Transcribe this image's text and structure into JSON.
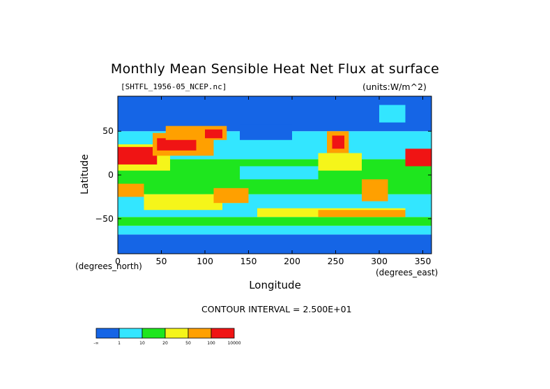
{
  "chart_data": {
    "type": "heatmap",
    "title": "Monthly Mean Sensible Heat Net Flux at surface",
    "subtitle_left": "[SHTFL_1956-05_NCEP.nc]",
    "units": "(units:W/m^2)",
    "xlabel": "Longitude",
    "ylabel": "Latitude",
    "x_unit_label": "(degrees_north)",
    "x_unit_label_east": "(degrees_east)",
    "xlim": [
      0,
      360
    ],
    "ylim": [
      -90,
      90
    ],
    "x_ticks": [
      0,
      50,
      100,
      150,
      200,
      250,
      300,
      350
    ],
    "y_ticks": [
      -50,
      0,
      50
    ],
    "contour_interval": "CONTOUR INTERVAL = 2.500E+01",
    "colorbar": {
      "colors": [
        "#1565e6",
        "#33e6ff",
        "#1ee61e",
        "#f5f51a",
        "#ffa000",
        "#f01414"
      ],
      "labels": [
        "-∞",
        "1",
        "10",
        "20",
        "50",
        "100",
        "10000"
      ]
    },
    "field_regions": [
      {
        "lon": [
          0,
          360
        ],
        "lat": [
          -90,
          -68
        ],
        "class": 0
      },
      {
        "lon": [
          0,
          360
        ],
        "lat": [
          -68,
          -58
        ],
        "class": 1
      },
      {
        "lon": [
          0,
          360
        ],
        "lat": [
          -58,
          -48
        ],
        "class": 2
      },
      {
        "lon": [
          0,
          360
        ],
        "lat": [
          -48,
          -22
        ],
        "class": 1
      },
      {
        "lon": [
          0,
          360
        ],
        "lat": [
          -22,
          18
        ],
        "class": 2
      },
      {
        "lon": [
          0,
          360
        ],
        "lat": [
          18,
          50
        ],
        "class": 1
      },
      {
        "lon": [
          0,
          360
        ],
        "lat": [
          50,
          90
        ],
        "class": 0
      },
      {
        "lon": [
          140,
          230
        ],
        "lat": [
          -5,
          10
        ],
        "class": 1
      },
      {
        "lon": [
          140,
          200
        ],
        "lat": [
          40,
          58
        ],
        "class": 0
      },
      {
        "lon": [
          30,
          120
        ],
        "lat": [
          -40,
          -22
        ],
        "class": 3
      },
      {
        "lon": [
          100,
          140
        ],
        "lat": [
          -32,
          -22
        ],
        "class": 3
      },
      {
        "lon": [
          160,
          330
        ],
        "lat": [
          -48,
          -38
        ],
        "class": 3
      },
      {
        "lon": [
          230,
          330
        ],
        "lat": [
          -48,
          -40
        ],
        "class": 4
      },
      {
        "lon": [
          0,
          60
        ],
        "lat": [
          5,
          35
        ],
        "class": 3
      },
      {
        "lon": [
          0,
          45
        ],
        "lat": [
          12,
          32
        ],
        "class": 5
      },
      {
        "lon": [
          40,
          110
        ],
        "lat": [
          22,
          48
        ],
        "class": 4
      },
      {
        "lon": [
          45,
          90
        ],
        "lat": [
          28,
          42
        ],
        "class": 5
      },
      {
        "lon": [
          55,
          125
        ],
        "lat": [
          40,
          56
        ],
        "class": 4
      },
      {
        "lon": [
          100,
          120
        ],
        "lat": [
          42,
          52
        ],
        "class": 5
      },
      {
        "lon": [
          110,
          150
        ],
        "lat": [
          -32,
          -15
        ],
        "class": 4
      },
      {
        "lon": [
          0,
          30
        ],
        "lat": [
          -25,
          -10
        ],
        "class": 4
      },
      {
        "lon": [
          240,
          265
        ],
        "lat": [
          25,
          50
        ],
        "class": 4
      },
      {
        "lon": [
          246,
          260
        ],
        "lat": [
          30,
          45
        ],
        "class": 5
      },
      {
        "lon": [
          280,
          310
        ],
        "lat": [
          -30,
          -5
        ],
        "class": 4
      },
      {
        "lon": [
          330,
          360
        ],
        "lat": [
          10,
          30
        ],
        "class": 5
      },
      {
        "lon": [
          300,
          330
        ],
        "lat": [
          60,
          80
        ],
        "class": 1
      },
      {
        "lon": [
          230,
          280
        ],
        "lat": [
          5,
          25
        ],
        "class": 3
      }
    ]
  }
}
